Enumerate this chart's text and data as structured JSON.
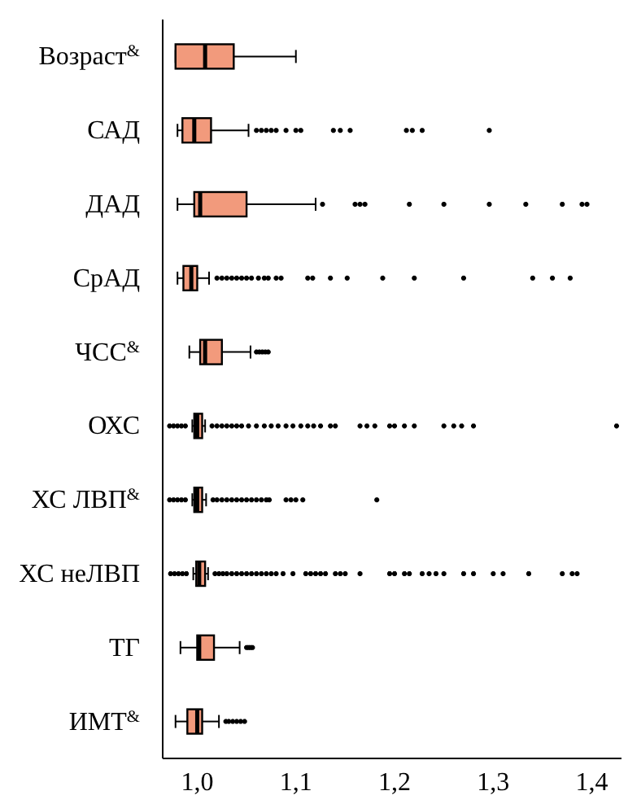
{
  "chart_data": {
    "type": "box",
    "orientation": "horizontal",
    "categories": [
      "Возраст$^{&}$",
      "САД",
      "ДАД",
      "СрАД",
      "ЧСС$^{&}$",
      "ОХС",
      "ХС ЛВП$^{&}$",
      "ХС неЛВП",
      "ТГ",
      "ИМТ$^{&}$"
    ],
    "color": "#f29a7c",
    "marker": "star",
    "grid": false,
    "legend": false,
    "xlim": [
      0.965,
      1.43
    ],
    "xticks": [
      {
        "value": 1.0,
        "label": "1,0"
      },
      {
        "value": 1.1,
        "label": "1,1"
      },
      {
        "value": 1.2,
        "label": "1,2"
      },
      {
        "value": 1.3,
        "label": "1,3"
      },
      {
        "value": 1.4,
        "label": "1,4"
      }
    ],
    "boxes": [
      {
        "low": 0.978,
        "q1": 0.978,
        "median": 1.008,
        "q3": 1.037,
        "high": 1.1
      },
      {
        "low": 0.98,
        "q1": 0.985,
        "median": 0.997,
        "q3": 1.014,
        "high": 1.052,
        "outliers": [
          1.06,
          1.065,
          1.07,
          1.075,
          1.08,
          1.09,
          1.1,
          1.105,
          1.138,
          1.145,
          1.155,
          1.212,
          1.218,
          1.228,
          1.296
        ]
      },
      {
        "low": 0.98,
        "q1": 0.997,
        "median": 1.003,
        "q3": 1.05,
        "high": 1.12,
        "outliers": [
          1.127,
          1.16,
          1.165,
          1.17,
          1.215,
          1.25,
          1.296,
          1.333,
          1.37,
          1.39,
          1.395
        ]
      },
      {
        "low": 0.98,
        "q1": 0.986,
        "median": 0.994,
        "q3": 1.0,
        "high": 1.012,
        "outliers": [
          1.02,
          1.025,
          1.03,
          1.035,
          1.04,
          1.045,
          1.05,
          1.055,
          1.062,
          1.068,
          1.072,
          1.08,
          1.085,
          1.112,
          1.117,
          1.135,
          1.152,
          1.188,
          1.22,
          1.27,
          1.34,
          1.36,
          1.378
        ]
      },
      {
        "low": 0.992,
        "q1": 1.003,
        "median": 1.008,
        "q3": 1.025,
        "high": 1.054,
        "outliers": [
          1.06,
          1.063,
          1.066,
          1.069,
          1.072
        ]
      },
      {
        "low": 0.995,
        "q1": 0.997,
        "median": 1.0,
        "q3": 1.005,
        "high": 1.008,
        "outliers": [
          0.972,
          0.976,
          0.98,
          0.984,
          0.988,
          1.015,
          1.02,
          1.025,
          1.03,
          1.035,
          1.04,
          1.045,
          1.052,
          1.06,
          1.068,
          1.075,
          1.082,
          1.09,
          1.097,
          1.105,
          1.112,
          1.118,
          1.125,
          1.135,
          1.14,
          1.165,
          1.172,
          1.18,
          1.195,
          1.2,
          1.21,
          1.22,
          1.25,
          1.26,
          1.268,
          1.28,
          1.425
        ]
      },
      {
        "low": 0.995,
        "q1": 0.997,
        "median": 1.0,
        "q3": 1.005,
        "high": 1.009,
        "outliers": [
          0.972,
          0.976,
          0.98,
          0.984,
          0.988,
          1.016,
          1.02,
          1.025,
          1.03,
          1.035,
          1.04,
          1.045,
          1.05,
          1.055,
          1.06,
          1.065,
          1.07,
          1.073,
          1.09,
          1.095,
          1.1,
          1.107,
          1.182
        ]
      },
      {
        "low": 0.996,
        "q1": 0.999,
        "median": 1.002,
        "q3": 1.008,
        "high": 1.011,
        "outliers": [
          0.973,
          0.977,
          0.981,
          0.985,
          0.989,
          1.018,
          1.022,
          1.026,
          1.03,
          1.035,
          1.04,
          1.045,
          1.05,
          1.055,
          1.06,
          1.065,
          1.07,
          1.075,
          1.08,
          1.087,
          1.097,
          1.11,
          1.115,
          1.12,
          1.125,
          1.13,
          1.14,
          1.145,
          1.15,
          1.165,
          1.195,
          1.2,
          1.21,
          1.215,
          1.228,
          1.235,
          1.242,
          1.25,
          1.27,
          1.28,
          1.3,
          1.31,
          1.336,
          1.37,
          1.38,
          1.385
        ]
      },
      {
        "low": 0.983,
        "q1": 1.0,
        "median": 1.002,
        "q3": 1.017,
        "high": 1.043,
        "outliers": [
          1.05,
          1.052,
          1.054,
          1.056
        ]
      },
      {
        "low": 0.978,
        "q1": 0.99,
        "median": 1.0,
        "q3": 1.005,
        "high": 1.022,
        "outliers": [
          1.029,
          1.032,
          1.036,
          1.04,
          1.044,
          1.048
        ]
      }
    ]
  }
}
